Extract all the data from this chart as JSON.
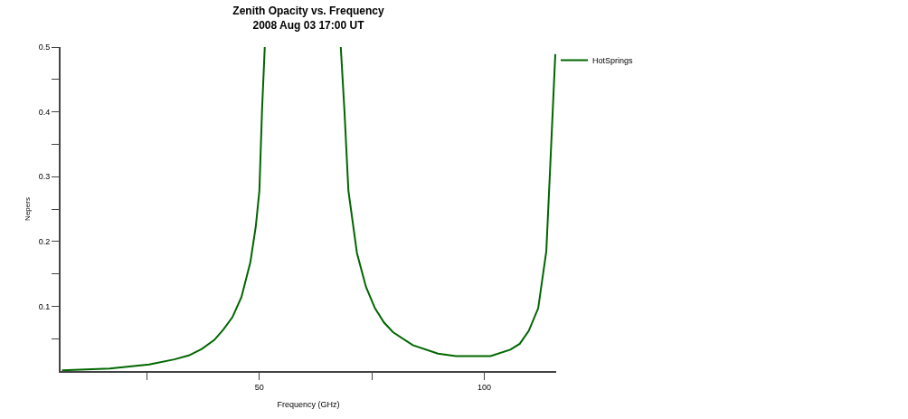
{
  "chart_data": {
    "type": "line",
    "title": "Zenith Opacity vs. Frequency",
    "subtitle": "2008 Aug 03 17:00 UT",
    "xlabel": "Frequency (GHz)",
    "ylabel": "Nepers",
    "x": [
      6.1,
      16.7,
      25.5,
      31.1,
      34.3,
      37.2,
      40.0,
      42.0,
      44.0,
      46.0,
      48.0,
      49.2,
      50.0,
      50.6,
      51.2,
      60.0,
      68.1,
      68.9,
      69.8,
      71.7,
      73.7,
      75.7,
      77.7,
      79.7,
      84.1,
      89.7,
      93.7,
      101.4,
      105.8,
      107.9,
      109.9,
      112.0,
      113.8,
      114.6,
      115.8
    ],
    "series": [
      {
        "name": "HotSprings",
        "color": "#006600",
        "values": [
          0.001,
          0.004,
          0.01,
          0.018,
          0.024,
          0.034,
          0.048,
          0.064,
          0.083,
          0.114,
          0.168,
          0.223,
          0.278,
          0.404,
          0.5,
          null,
          0.5,
          0.404,
          0.278,
          0.182,
          0.13,
          0.097,
          0.075,
          0.06,
          0.04,
          0.027,
          0.023,
          0.023,
          0.033,
          0.042,
          0.062,
          0.097,
          0.185,
          0.305,
          0.489
        ]
      }
    ],
    "xlim": [
      5.8,
      116
    ],
    "xticks": [
      {
        "value": 25,
        "label": null
      },
      50,
      {
        "value": 75,
        "label": null
      },
      100
    ],
    "ylim": [
      0,
      0.5
    ],
    "yticks": [
      {
        "value": 0.05,
        "label": null
      },
      0.1,
      {
        "value": 0.15,
        "label": null
      },
      0.2,
      {
        "value": 0.25,
        "label": null
      },
      0.3,
      {
        "value": 0.35,
        "label": null
      },
      0.4,
      {
        "value": 0.45,
        "label": null
      },
      0.5
    ],
    "legend": "top right",
    "marker": "none",
    "line_style": "solid"
  }
}
